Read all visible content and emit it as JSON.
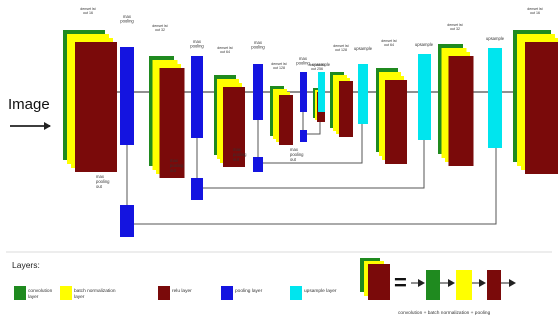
{
  "input_label": "Image",
  "colors": {
    "conv": "#1f8a1f",
    "batch_norm": "#ffff00",
    "relu": "#7a0a0a",
    "pool": "#1414e0",
    "upsample": "#00e5ee"
  },
  "stacks": {
    "s1": "denset lst\nout 16",
    "s2": "denset lst\nout 32",
    "s3": "denset lst\nout 64",
    "s4": "denset lst\nout 128",
    "s5": "denset lst\nout 256",
    "s6": "denset lst\nout 128",
    "s7": "denset lst\nout 64",
    "s8": "denset lst\nout 32",
    "s9": "denset lst\nout 16"
  },
  "pool_labels": {
    "p1_top": "max\npooling",
    "p1_bottom": "max\npooling\nout",
    "p2_top": "max\npooling",
    "p2_bottom": "max\npooling\nout",
    "p3_top": "max\npooling",
    "p3_bottom": "max\npooling\nout",
    "p4_top": "max\npooling",
    "p4_bottom": "max\npooling\nout"
  },
  "upsample_labels": {
    "u1": "upsample",
    "u2": "upsample",
    "u3": "upsample",
    "u4": "upsample"
  },
  "legend": {
    "title": "Layers:",
    "items": [
      {
        "label": "convolution\nlayer",
        "color_key": "conv"
      },
      {
        "label": "batch normalization\nlayer",
        "color_key": "batch_norm"
      },
      {
        "label": "relu layer",
        "color_key": "relu"
      },
      {
        "label": "pooling layer",
        "color_key": "pool"
      },
      {
        "label": "upsample layer",
        "color_key": "upsample"
      }
    ],
    "equation_label": "convolution + batch normalization + pooling"
  }
}
